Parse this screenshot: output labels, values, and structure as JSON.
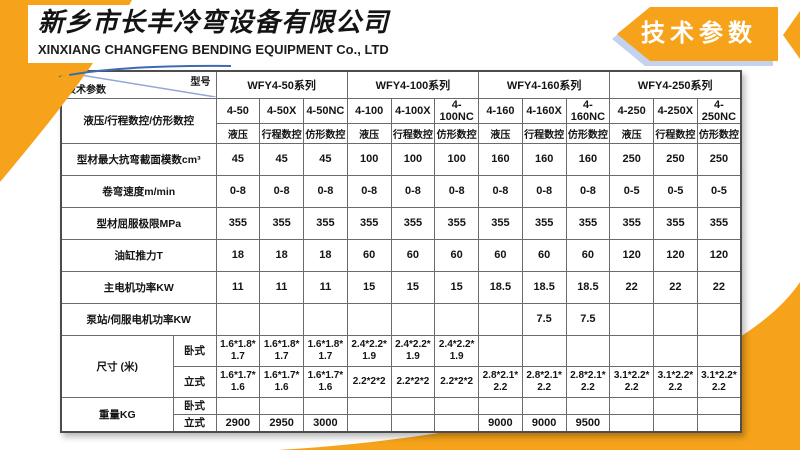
{
  "company": {
    "name_cn": "新乡市长丰冷弯设备有限公司",
    "name_en": "XINXIANG CHANGFENG BENDING EQUIPMENT Co., LTD"
  },
  "banner": {
    "title": "技术参数"
  },
  "colors": {
    "accent_orange": "#F6A31B",
    "shadow_blue": "#C3D2EE",
    "diagonal_blue": "#8FA8D8"
  },
  "table": {
    "corner": {
      "model_label": "型号",
      "param_label": "技术参数"
    },
    "series": [
      "WFY4-50系列",
      "WFY4-100系列",
      "WFY4-160系列",
      "WFY4-250系列"
    ],
    "models": [
      "4-50",
      "4-50X",
      "4-50NC",
      "4-100",
      "4-100X",
      "4-100NC",
      "4-160",
      "4-160X",
      "4-160NC",
      "4-250",
      "4-250X",
      "4-250NC"
    ],
    "types": [
      "液压",
      "行程数控",
      "仿形数控",
      "液压",
      "行程数控",
      "仿形数控",
      "液压",
      "行程数控",
      "仿形数控",
      "液压",
      "行程数控",
      "仿形数控"
    ],
    "type_row_label": "液压/行程数控/仿形数控",
    "rows": [
      {
        "label": "型材最大抗弯截面模数cm³",
        "values": [
          "45",
          "45",
          "45",
          "100",
          "100",
          "100",
          "160",
          "160",
          "160",
          "250",
          "250",
          "250"
        ]
      },
      {
        "label": "卷弯速度m/min",
        "values": [
          "0-8",
          "0-8",
          "0-8",
          "0-8",
          "0-8",
          "0-8",
          "0-8",
          "0-8",
          "0-8",
          "0-5",
          "0-5",
          "0-5"
        ]
      },
      {
        "label": "型材屈服极限MPa",
        "values": [
          "355",
          "355",
          "355",
          "355",
          "355",
          "355",
          "355",
          "355",
          "355",
          "355",
          "355",
          "355"
        ]
      },
      {
        "label": "油缸推力T",
        "values": [
          "18",
          "18",
          "18",
          "60",
          "60",
          "60",
          "60",
          "60",
          "60",
          "120",
          "120",
          "120"
        ]
      },
      {
        "label": "主电机功率KW",
        "values": [
          "11",
          "11",
          "11",
          "15",
          "15",
          "15",
          "18.5",
          "18.5",
          "18.5",
          "22",
          "22",
          "22"
        ]
      },
      {
        "label": "泵站/伺服电机功率KW",
        "values": [
          "",
          "",
          "",
          "",
          "",
          "",
          "",
          "7.5",
          "7.5",
          "",
          "",
          ""
        ]
      }
    ],
    "group_rows": [
      {
        "label": "尺寸 (米)",
        "sub": [
          {
            "label": "卧式",
            "values": [
              "1.6*1.8*1.7",
              "1.6*1.8*1.7",
              "1.6*1.8*1.7",
              "2.4*2.2*1.9",
              "2.4*2.2*1.9",
              "2.4*2.2*1.9",
              "",
              "",
              "",
              "",
              "",
              ""
            ]
          },
          {
            "label": "立式",
            "values": [
              "1.6*1.7*1.6",
              "1.6*1.7*1.6",
              "1.6*1.7*1.6",
              "2.2*2*2",
              "2.2*2*2",
              "2.2*2*2",
              "2.8*2.1*2.2",
              "2.8*2.1*2.2",
              "2.8*2.1*2.2",
              "3.1*2.2*2.2",
              "3.1*2.2*2.2",
              "3.1*2.2*2.2"
            ]
          }
        ]
      },
      {
        "label": "重量KG",
        "sub": [
          {
            "label": "卧式",
            "values": [
              "",
              "",
              "",
              "",
              "",
              "",
              "",
              "",
              "",
              "",
              "",
              ""
            ]
          },
          {
            "label": "立式",
            "values": [
              "2900",
              "2950",
              "3000",
              "",
              "",
              "",
              "9000",
              "9000",
              "9500",
              "",
              "",
              ""
            ]
          }
        ]
      }
    ]
  }
}
